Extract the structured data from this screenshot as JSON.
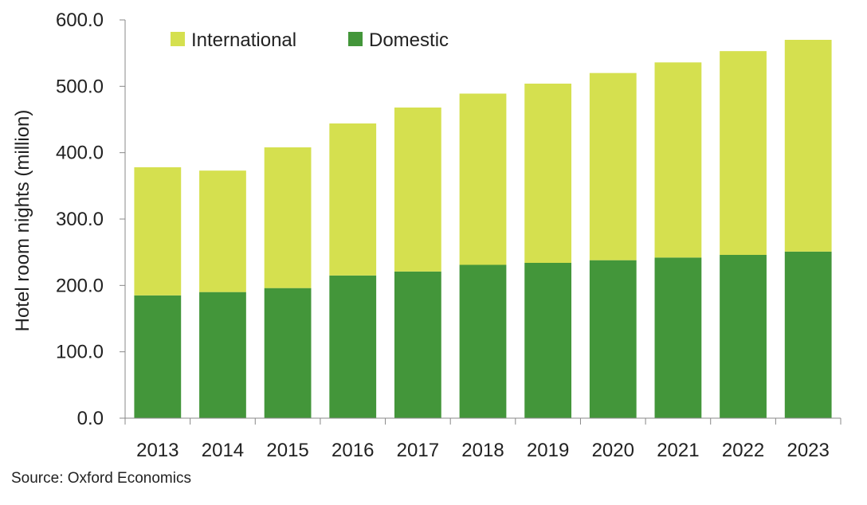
{
  "chart_data": {
    "type": "bar",
    "stacked": true,
    "categories": [
      "2013",
      "2014",
      "2015",
      "2016",
      "2017",
      "2018",
      "2019",
      "2020",
      "2021",
      "2022",
      "2023"
    ],
    "series": [
      {
        "name": "Domestic",
        "color": "#43963a",
        "values": [
          185,
          190,
          196,
          215,
          221,
          231,
          234,
          238,
          242,
          246,
          251
        ]
      },
      {
        "name": "International",
        "color": "#d5e04f",
        "values": [
          193,
          183,
          212,
          229,
          247,
          258,
          270,
          282,
          294,
          307,
          319
        ]
      }
    ],
    "ylabel": "Hotel room nights (million)",
    "ylim": [
      0,
      600
    ],
    "yticks": [
      "0.0",
      "100.0",
      "200.0",
      "300.0",
      "400.0",
      "500.0",
      "600.0"
    ],
    "legend": {
      "position": "top-left",
      "items": [
        "International",
        "Domestic"
      ]
    },
    "grid": false
  },
  "source": "Source: Oxford Economics"
}
